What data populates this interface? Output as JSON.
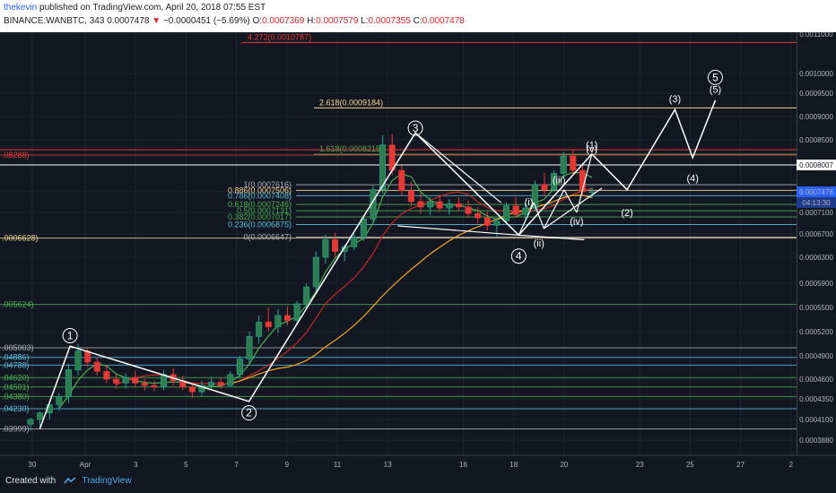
{
  "header": {
    "publisher": "thekevin",
    "published_text": "published on TradingView.com, April 20, 2018 07:55 EST",
    "symbol": "BINANCE:WANBTC, 343",
    "last": "0.0007478",
    "change_arrow": "▼",
    "change": "−0.0000451 (−5.69%)",
    "o_label": "O:",
    "o_val": "0.0007369",
    "h_label": "H:",
    "h_val": "0.0007579",
    "l_label": "L:",
    "l_val": "0.0007355",
    "c_label": "C:",
    "c_val": "0.0007478"
  },
  "footer": {
    "created_with": "Created with",
    "brand": "TradingView",
    "logo_icon": "tradingview-logo-icon"
  },
  "colors": {
    "background": "#131722",
    "up": "#26a69a",
    "up_fill": "#2e7d4f",
    "down": "#e53935",
    "wave_lines": "#ffffff",
    "fib_gold": "#f5d78e",
    "fib_green": "#4caf50",
    "fib_red": "#e53935",
    "fib_teal": "#5bc0de",
    "ma_fast": "#4caf50",
    "ma_mid": "#c62828",
    "ma_slow": "#f5a623",
    "current_price_box": "#2962ff"
  },
  "chart_data": {
    "type": "candlestick",
    "x_tick_labels": [
      "30",
      "Apr",
      "3",
      "5",
      "7",
      "9",
      "11",
      "13",
      "16",
      "18",
      "20",
      "23",
      "25",
      "27",
      "2"
    ],
    "price_axis_labels": [
      "0.0011000",
      "0.0010000",
      "0.0009500",
      "0.0009000",
      "0.0008500",
      "0.0008007",
      "0.0007478",
      "04:13:30",
      "0.0007100",
      "0.0006700",
      "0.0006300",
      "0.0005900",
      "0.0005500",
      "0.0005200",
      "0.0004900",
      "0.0004600",
      "0.0004350",
      "0.0004100",
      "0.0003880"
    ],
    "price_axis_values": [
      0.0011,
      0.001,
      0.00095,
      0.0009,
      0.00085,
      0.0008007,
      0.0007478,
      null,
      0.00071,
      0.00067,
      0.00063,
      0.00059,
      0.00055,
      0.00052,
      0.00049,
      0.00046,
      0.000435,
      0.00041,
      0.000388
    ],
    "current_price": 0.0007478,
    "countdown": "04:13:30",
    "fib_levels_right": [
      {
        "label": "4.272(0.0010787)",
        "value": 0.0010787,
        "color": "red"
      },
      {
        "label": "2.618(0.0009184)",
        "value": 0.0009184,
        "color": "gold"
      },
      {
        "label": "1.618(0.0008215)",
        "value": 0.0008215,
        "color": "green"
      },
      {
        "label": "1(0.0007616)",
        "value": 0.0007616,
        "color": "gray"
      },
      {
        "label": "0.886(0.0007506)",
        "value": 0.0007506,
        "color": "gold"
      },
      {
        "label": "0.786(0.0007408)",
        "value": 0.0007408,
        "color": "teal"
      },
      {
        "label": "0.618(0.0007246)",
        "value": 0.0007246,
        "color": "green"
      },
      {
        "label": "0.5(0.0007131)",
        "value": 0.0007131,
        "color": "green"
      },
      {
        "label": "0.382(0.0007017)",
        "value": 0.0007017,
        "color": "green"
      },
      {
        "label": "0.236(0.0006875)",
        "value": 0.0006875,
        "color": "teal"
      },
      {
        "label": "0(0.0006647)",
        "value": 0.0006647,
        "color": "gray"
      }
    ],
    "fib_levels_left": [
      {
        "label": ".08288)",
        "value": 0.00082,
        "color": "red"
      },
      {
        "label": ".0006628)",
        "value": 0.0006628,
        "color": "gold"
      },
      {
        "label": ".005624)",
        "value": 0.000555,
        "color": "green"
      },
      {
        "label": ".005003)",
        "value": 0.0005,
        "color": "gray"
      },
      {
        "label": ".04886)",
        "value": 0.000488,
        "color": "teal"
      },
      {
        "label": ".04788)",
        "value": 0.000478,
        "color": "teal"
      },
      {
        "label": ".04620)",
        "value": 0.000462,
        "color": "green"
      },
      {
        "label": ".04501)",
        "value": 0.00045,
        "color": "green"
      },
      {
        "label": ".04380)",
        "value": 0.000438,
        "color": "green"
      },
      {
        "label": ".04230)",
        "value": 0.000423,
        "color": "teal"
      },
      {
        "label": ".03999)",
        "value": 0.0004,
        "color": "gray"
      }
    ],
    "wave_labels": [
      {
        "text": "1",
        "style": "circle",
        "x": 1.8,
        "y": 0.000515
      },
      {
        "text": "2",
        "style": "circle",
        "x": 8.9,
        "y": 0.000418
      },
      {
        "text": "3",
        "style": "circle",
        "x": 15.5,
        "y": 0.000875
      },
      {
        "text": "4",
        "style": "circle",
        "x": 19.6,
        "y": 0.000632
      },
      {
        "text": "5",
        "style": "circle",
        "x": 27.4,
        "y": 0.00099
      },
      {
        "text": "(i)",
        "style": "paren",
        "x": 20.0,
        "y": 0.00073
      },
      {
        "text": "(ii)",
        "style": "paren",
        "x": 20.4,
        "y": 0.000655
      },
      {
        "text": "(iii)",
        "style": "paren",
        "x": 21.2,
        "y": 0.000772
      },
      {
        "text": "(iv)",
        "style": "paren",
        "x": 21.9,
        "y": 0.000694
      },
      {
        "text": "(v)",
        "style": "paren",
        "x": 22.5,
        "y": 0.000832
      },
      {
        "text": "(1)",
        "style": "paren",
        "x": 22.5,
        "y": 0.00084
      },
      {
        "text": "(2)",
        "style": "paren",
        "x": 23.9,
        "y": 0.00071
      },
      {
        "text": "(3)",
        "style": "paren",
        "x": 25.8,
        "y": 0.000938
      },
      {
        "text": "(4)",
        "style": "paren",
        "x": 26.5,
        "y": 0.000775
      },
      {
        "text": "(5)",
        "style": "paren",
        "x": 27.4,
        "y": 0.00096
      }
    ],
    "wave_path": [
      [
        0.6,
        0.0004
      ],
      [
        1.8,
        0.000502
      ],
      [
        8.9,
        0.000432
      ],
      [
        15.5,
        0.000865
      ],
      [
        19.6,
        0.000668
      ],
      [
        22.5,
        0.000822
      ],
      [
        23.9,
        0.000752
      ],
      [
        25.8,
        0.000915
      ],
      [
        26.5,
        0.000815
      ],
      [
        27.4,
        0.000935
      ]
    ],
    "fib_extension_lines_price": [
      0.0010787,
      0.0009184,
      0.0008215,
      0.0008007
    ],
    "candles_ohlc": [
      [
        0.000405,
        0.000412,
        0.000398,
        0.00041
      ],
      [
        0.00041,
        0.00042,
        0.000402,
        0.000418
      ],
      [
        0.000418,
        0.000432,
        0.00041,
        0.000428
      ],
      [
        0.000428,
        0.000442,
        0.00042,
        0.000438
      ],
      [
        0.000438,
        0.00048,
        0.00043,
        0.000472
      ],
      [
        0.000472,
        0.000505,
        0.000465,
        0.000496
      ],
      [
        0.000496,
        0.0005,
        0.000476,
        0.000482
      ],
      [
        0.000482,
        0.000488,
        0.000465,
        0.00047
      ],
      [
        0.00047,
        0.000478,
        0.000455,
        0.00046
      ],
      [
        0.00046,
        0.000466,
        0.000448,
        0.000455
      ],
      [
        0.000455,
        0.000468,
        0.000448,
        0.000462
      ],
      [
        0.000462,
        0.00047,
        0.00045,
        0.000455
      ],
      [
        0.000455,
        0.00046,
        0.000446,
        0.000452
      ],
      [
        0.000452,
        0.000458,
        0.000445,
        0.00045
      ],
      [
        0.00045,
        0.000472,
        0.000446,
        0.000466
      ],
      [
        0.000466,
        0.000474,
        0.000452,
        0.000458
      ],
      [
        0.000458,
        0.000464,
        0.000446,
        0.00045
      ],
      [
        0.00045,
        0.000456,
        0.000436,
        0.000444
      ],
      [
        0.000444,
        0.000458,
        0.000438,
        0.000452
      ],
      [
        0.000452,
        0.000462,
        0.000446,
        0.000456
      ],
      [
        0.000456,
        0.000462,
        0.000448,
        0.000452
      ],
      [
        0.000452,
        0.00047,
        0.00045,
        0.000466
      ],
      [
        0.000466,
        0.00049,
        0.000462,
        0.000486
      ],
      [
        0.000486,
        0.00052,
        0.00048,
        0.000514
      ],
      [
        0.000514,
        0.00054,
        0.000505,
        0.000532
      ],
      [
        0.000532,
        0.00055,
        0.00052,
        0.000526
      ],
      [
        0.000526,
        0.000548,
        0.000518,
        0.00054
      ],
      [
        0.00054,
        0.000552,
        0.000528,
        0.000534
      ],
      [
        0.000534,
        0.00056,
        0.00053,
        0.000556
      ],
      [
        0.000556,
        0.00059,
        0.000548,
        0.000584
      ],
      [
        0.000584,
        0.00064,
        0.000576,
        0.00063
      ],
      [
        0.00063,
        0.000668,
        0.00062,
        0.00066
      ],
      [
        0.00066,
        0.000672,
        0.00063,
        0.00064
      ],
      [
        0.00064,
        0.000652,
        0.000624,
        0.000648
      ],
      [
        0.000648,
        0.00067,
        0.000642,
        0.000664
      ],
      [
        0.000664,
        0.000705,
        0.000658,
        0.000698
      ],
      [
        0.000698,
        0.00076,
        0.00069,
        0.000752
      ],
      [
        0.000752,
        0.00086,
        0.000745,
        0.00084
      ],
      [
        0.00084,
        0.000862,
        0.00078,
        0.00079
      ],
      [
        0.00079,
        0.0008,
        0.00074,
        0.00075
      ],
      [
        0.00075,
        0.000768,
        0.000722,
        0.00073
      ],
      [
        0.00073,
        0.000745,
        0.000708,
        0.00072
      ],
      [
        0.00072,
        0.000738,
        0.000705,
        0.00073
      ],
      [
        0.00073,
        0.000742,
        0.000712,
        0.000718
      ],
      [
        0.000718,
        0.000734,
        0.000706,
        0.000726
      ],
      [
        0.000726,
        0.000738,
        0.000712,
        0.00072
      ],
      [
        0.00072,
        0.000732,
        0.0007,
        0.000708
      ],
      [
        0.000708,
        0.00072,
        0.00069,
        0.0007
      ],
      [
        0.0007,
        0.000712,
        0.000676,
        0.000686
      ],
      [
        0.000686,
        0.0007,
        0.000664,
        0.000694
      ],
      [
        0.000694,
        0.000728,
        0.000688,
        0.000722
      ],
      [
        0.000722,
        0.000738,
        0.0007,
        0.000706
      ],
      [
        0.000706,
        0.000724,
        0.000696,
        0.000718
      ],
      [
        0.000718,
        0.00077,
        0.000712,
        0.000762
      ],
      [
        0.000762,
        0.000784,
        0.00074,
        0.000752
      ],
      [
        0.000752,
        0.00079,
        0.000748,
        0.000784
      ],
      [
        0.000784,
        0.000826,
        0.000776,
        0.000818
      ],
      [
        0.000818,
        0.000832,
        0.000782,
        0.00079
      ],
      [
        0.00079,
        0.0008,
        0.000742,
        0.000748
      ],
      [
        0.000748,
        0.000758,
        0.000736,
        0.000748
      ]
    ]
  }
}
